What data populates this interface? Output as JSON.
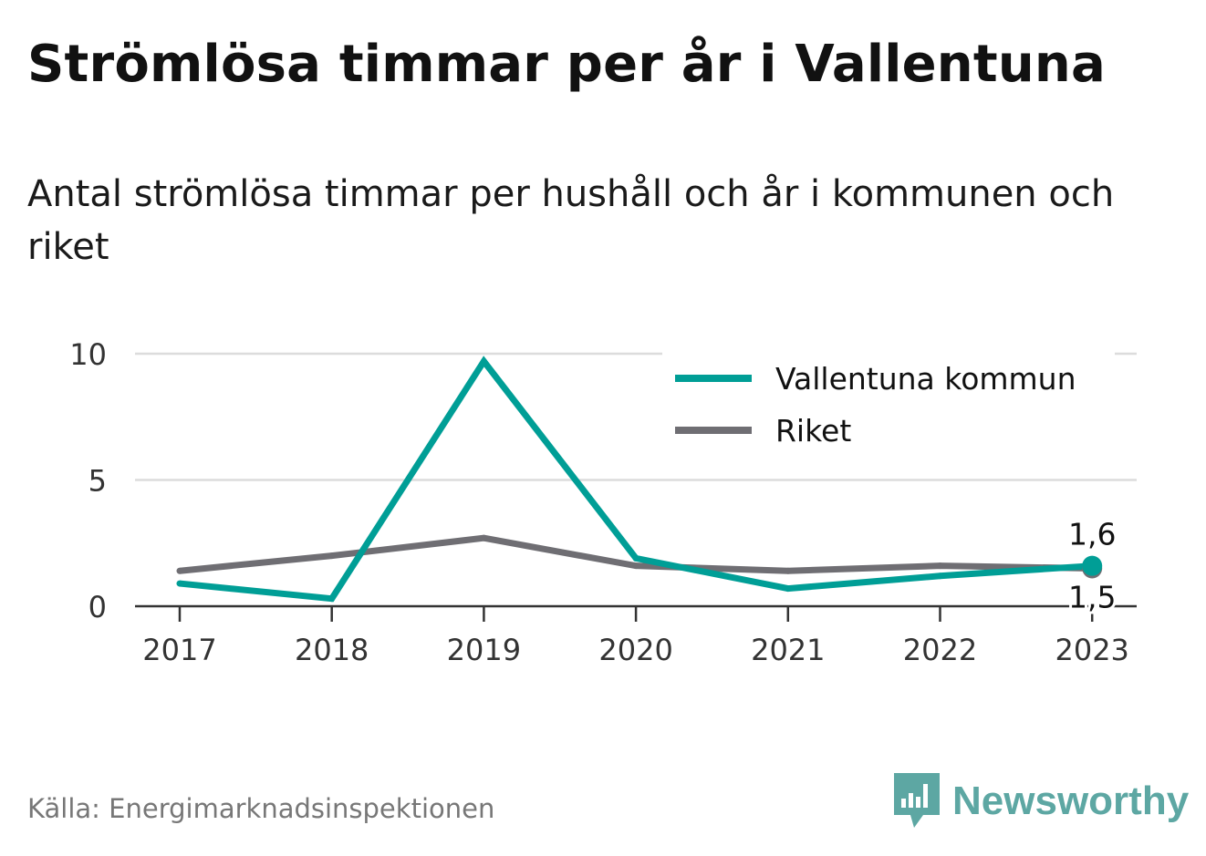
{
  "title": "Strömlösa timmar per år i Vallentuna",
  "subtitle": "Antal strömlösa timmar per hushåll och år i kommunen och riket",
  "source": "Källa: Energimarknadsinspektionen",
  "brand": {
    "name": "Newsworthy",
    "icon": "bar-chart-speech-icon",
    "color": "#5da7a3"
  },
  "chart_data": {
    "type": "line",
    "title": "Strömlösa timmar per år i Vallentuna",
    "xlabel": "",
    "ylabel": "",
    "x": [
      "2017",
      "2018",
      "2019",
      "2020",
      "2021",
      "2022",
      "2023"
    ],
    "ylim": [
      0,
      10
    ],
    "yticks": [
      0,
      5,
      10
    ],
    "grid": true,
    "legend": "top-right",
    "series": [
      {
        "name": "Vallentuna kommun",
        "color": "#009e96",
        "values": [
          0.9,
          0.3,
          9.7,
          1.9,
          0.7,
          1.2,
          1.6
        ],
        "end_label": "1,6"
      },
      {
        "name": "Riket",
        "color": "#6f6e73",
        "values": [
          1.4,
          2.0,
          2.7,
          1.6,
          1.4,
          1.6,
          1.5
        ],
        "end_label": "1,5"
      }
    ]
  }
}
